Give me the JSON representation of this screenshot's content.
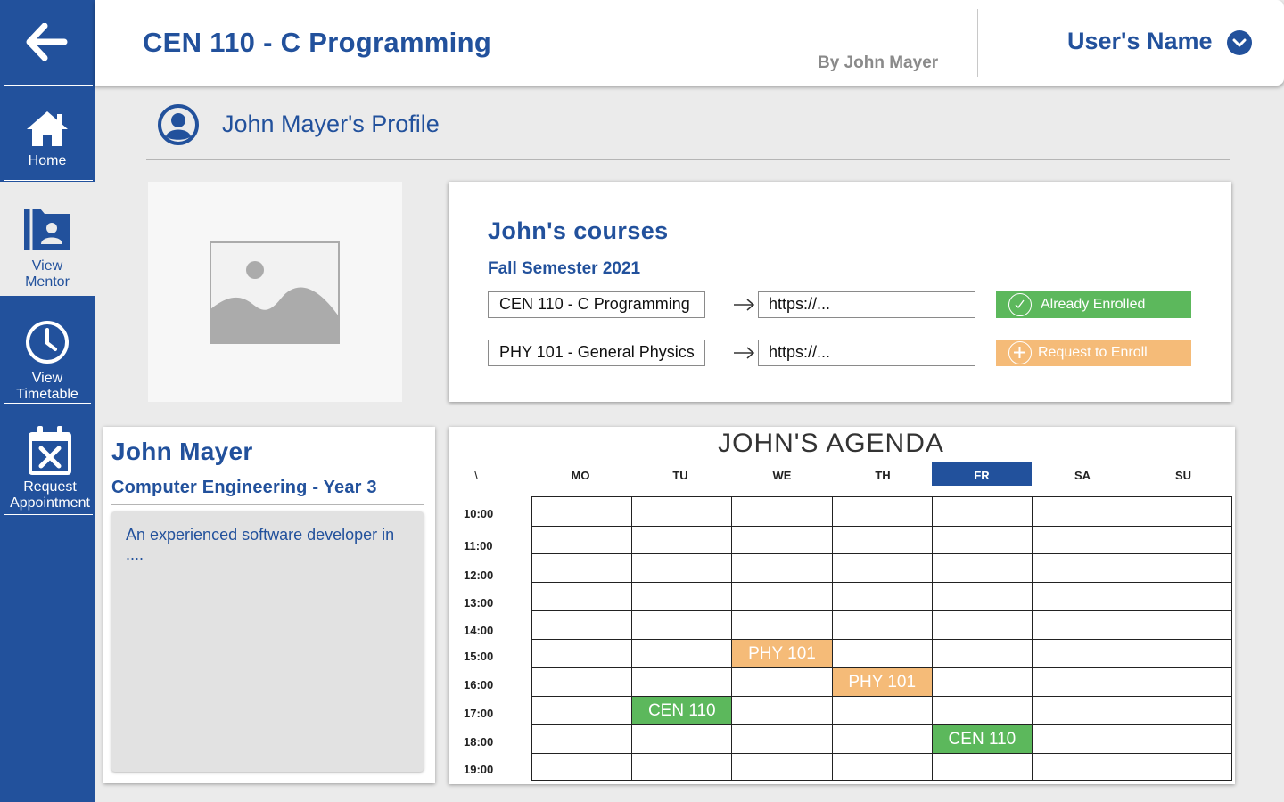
{
  "header": {
    "course_title": "CEN 110 - C Programming",
    "byline": "By John Mayer",
    "user_name": "User's Name"
  },
  "sidebar": {
    "items": [
      {
        "label": "Home",
        "icon": "home-icon"
      },
      {
        "label": "View\nMentor",
        "icon": "mentor-folder-icon"
      },
      {
        "label": "View\nTimetable",
        "icon": "clock-icon"
      },
      {
        "label": "Request\nAppointment",
        "icon": "calendar-x-icon"
      }
    ]
  },
  "profile": {
    "heading": "John Mayer's Profile"
  },
  "courses": {
    "title": "John's courses",
    "semester": "Fall Semester 2021",
    "rows": [
      {
        "course": "CEN 110 - C Programming",
        "link": "https://...",
        "status": "Already Enrolled",
        "status_color": "#5cb85c"
      },
      {
        "course": "PHY 101 - General Physics",
        "link": "https://...",
        "status": "Request to Enroll",
        "status_color": "#f5bb78"
      }
    ]
  },
  "mentor": {
    "name": "John Mayer",
    "department": "Computer Engineering - Year 3",
    "description": "An experienced software developer in ...."
  },
  "agenda": {
    "title": "JOHN'S AGENDA",
    "corner": "\\",
    "days": [
      "MO",
      "TU",
      "WE",
      "TH",
      "FR",
      "SA",
      "SU"
    ],
    "active_day": "FR",
    "times": [
      "10:00",
      "11:00",
      "12:00",
      "13:00",
      "14:00",
      "15:00",
      "16:00",
      "17:00",
      "18:00",
      "19:00"
    ],
    "events": [
      {
        "label": "PHY 101",
        "day": "WE",
        "time": "15:00",
        "color": "#f5bb78"
      },
      {
        "label": "PHY 101",
        "day": "TH",
        "time": "16:00",
        "color": "#f5bb78"
      },
      {
        "label": "CEN 110",
        "day": "TU",
        "time": "17:00",
        "color": "#5cb85c"
      },
      {
        "label": "CEN 110",
        "day": "FR",
        "time": "18:00",
        "color": "#5cb85c"
      }
    ]
  },
  "colors": {
    "brand": "#22519c",
    "background": "#ebebeb",
    "enrolled": "#5cb85c",
    "request": "#f5bb78"
  }
}
